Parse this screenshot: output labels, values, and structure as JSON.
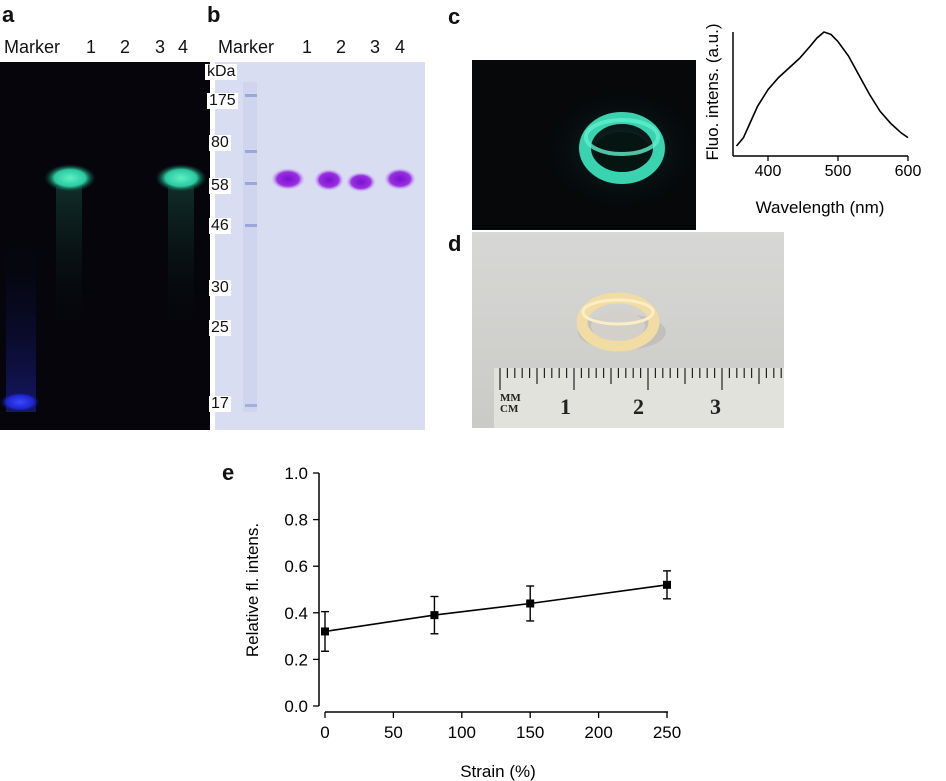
{
  "panels": {
    "a": {
      "letter": "a",
      "lanes": [
        "Marker",
        "1",
        "2",
        "3",
        "4"
      ],
      "band_color": "#35d0a8",
      "marker_color": "#2a34ff",
      "background_color": "#05050b"
    },
    "b": {
      "letter": "b",
      "lanes": [
        "Marker",
        "1",
        "2",
        "3",
        "4"
      ],
      "unit": "kDa",
      "mw_markers": [
        "175",
        "80",
        "58",
        "46",
        "30",
        "25",
        "17"
      ],
      "band_color": "#8a1fd6",
      "background_color": "#d8ddf1"
    },
    "c": {
      "letter": "c",
      "ring_color": "#39d3b0"
    },
    "d": {
      "letter": "d",
      "ruler_units": "MM CM",
      "ruler_numbers": [
        "1",
        "2",
        "3"
      ],
      "ring_color": "#f3dfa8"
    },
    "e": {
      "letter": "e"
    }
  },
  "chart_data": [
    {
      "panel": "c-inset",
      "type": "line",
      "xlabel": "Wavelength (nm)",
      "ylabel": "Fluo. intens. (a.u.)",
      "xlim": [
        350,
        600
      ],
      "xticks": [
        "400",
        "500",
        "600"
      ],
      "yticks_shown": false,
      "x": [
        355,
        365,
        375,
        385,
        400,
        415,
        430,
        445,
        460,
        470,
        480,
        490,
        500,
        515,
        530,
        545,
        560,
        575,
        590,
        600
      ],
      "y": [
        0.05,
        0.12,
        0.25,
        0.38,
        0.52,
        0.62,
        0.7,
        0.78,
        0.88,
        0.95,
        1.0,
        0.98,
        0.92,
        0.8,
        0.64,
        0.48,
        0.34,
        0.24,
        0.16,
        0.12
      ]
    },
    {
      "panel": "e",
      "type": "scatter",
      "xlabel": "Strain (%)",
      "ylabel": "Relative fl. intens.",
      "xlim": [
        0,
        260
      ],
      "ylim": [
        0,
        1.0
      ],
      "xticks": [
        "0",
        "50",
        "100",
        "150",
        "200",
        "250"
      ],
      "yticks": [
        "0.0",
        "0.2",
        "0.4",
        "0.6",
        "0.8",
        "1.0"
      ],
      "x": [
        0,
        80,
        150,
        250
      ],
      "y": [
        0.32,
        0.39,
        0.44,
        0.52
      ],
      "yerr": [
        0.085,
        0.08,
        0.075,
        0.06
      ],
      "line": "connected"
    }
  ]
}
